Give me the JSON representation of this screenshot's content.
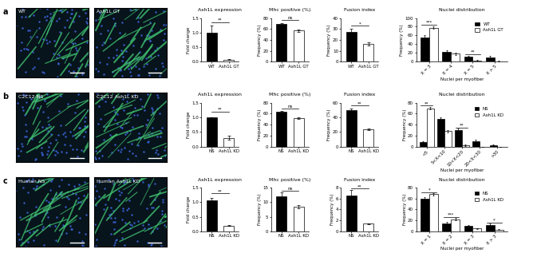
{
  "panel_labels": [
    "a",
    "b",
    "c"
  ],
  "images": [
    [
      "WT",
      "Ash1L GT"
    ],
    [
      "C2C12 NS",
      "C2C12 Ash1L KD"
    ],
    [
      "Human NS",
      "Human Ash1L KD"
    ]
  ],
  "chart_data": [
    {
      "type": "bar",
      "title": "Ash1L expression",
      "y_label": "Fold change",
      "categories": [
        "WT",
        "Ash1L GT"
      ],
      "values": [
        1.0,
        0.07
      ],
      "errors": [
        0.25,
        0.02
      ],
      "colors": [
        "#000000",
        "#ffffff"
      ],
      "ylim": [
        0,
        1.5
      ],
      "yticks": [
        {
          "value": 0,
          "label": "0.0"
        },
        0.5,
        1.0,
        1.5
      ],
      "significance": [
        {
          "label": "**",
          "y": 1.35
        }
      ]
    },
    {
      "type": "bar",
      "title": "Mhc positive (%)",
      "y_label": "Frequency (%)",
      "categories": [
        "WT",
        "Ash1L GT"
      ],
      "values": [
        69,
        57
      ],
      "errors": [
        2,
        2
      ],
      "colors": [
        "#000000",
        "#ffffff"
      ],
      "ylim": [
        0,
        80
      ],
      "yticks": [
        0,
        20,
        40,
        60,
        80
      ],
      "significance": [
        {
          "label": "ns",
          "y": 76
        }
      ]
    },
    {
      "type": "bar",
      "title": "Fusion index",
      "y_label": "Frequency (%)",
      "categories": [
        "WT",
        "Ash1L GT"
      ],
      "values": [
        27,
        16
      ],
      "errors": [
        3,
        1.5
      ],
      "colors": [
        "#000000",
        "#ffffff"
      ],
      "ylim": [
        0,
        40
      ],
      "yticks": [
        0,
        10,
        20,
        30,
        40
      ],
      "significance": [
        {
          "label": "*",
          "y": 33
        }
      ]
    },
    {
      "type": "bar",
      "title": "Nuclei distribution",
      "y_label": "Frequency (%)",
      "x_label": "Nuclei per myofiber",
      "categories": [
        "X = 3",
        "X = 4",
        "X = 5",
        "X > 5"
      ],
      "series": [
        {
          "name": "WT",
          "color": "#000000",
          "values": [
            55,
            23,
            12,
            10
          ],
          "errors": [
            5,
            3,
            2,
            3
          ]
        },
        {
          "name": "Ash1L GT",
          "color": "#ffffff",
          "values": [
            78,
            18,
            3,
            1
          ],
          "errors": [
            3,
            2,
            1,
            0.5
          ]
        }
      ],
      "ylim": [
        0,
        100
      ],
      "yticks": [
        0,
        20,
        40,
        60,
        80,
        100
      ],
      "legend": "upper right",
      "significance": [
        {
          "category": "X = 3",
          "label": "***",
          "y": 85
        },
        {
          "category": "X = 5",
          "label": "**",
          "y": 17
        }
      ]
    },
    {
      "type": "bar",
      "title": "Ash1L expression",
      "y_label": "Fold change",
      "categories": [
        "NS",
        "Ash1L KD"
      ],
      "values": [
        1.0,
        0.3
      ],
      "errors": [
        0.01,
        0.07
      ],
      "colors": [
        "#000000",
        "#ffffff"
      ],
      "ylim": [
        0,
        1.5
      ],
      "yticks": [
        {
          "value": 0,
          "label": "0.0"
        },
        0.5,
        1.0,
        1.5
      ],
      "significance": [
        {
          "label": "**",
          "y": 1.2
        }
      ]
    },
    {
      "type": "bar",
      "title": "Mhc positive (%)",
      "y_label": "Frequency (%)",
      "categories": [
        "NS",
        "Ash1L KD"
      ],
      "values": [
        63,
        52
      ],
      "errors": [
        2,
        2
      ],
      "colors": [
        "#000000",
        "#ffffff"
      ],
      "ylim": [
        0,
        80
      ],
      "yticks": [
        0,
        20,
        40,
        60,
        80
      ],
      "significance": [
        {
          "label": "ns",
          "y": 70
        }
      ]
    },
    {
      "type": "bar",
      "title": "Fusion index",
      "y_label": "Frequency (%)",
      "categories": [
        "NS",
        "Ash1L KD"
      ],
      "values": [
        50,
        24
      ],
      "errors": [
        2,
        1
      ],
      "colors": [
        "#000000",
        "#ffffff"
      ],
      "ylim": [
        0,
        60
      ],
      "yticks": [
        0,
        20,
        40,
        60
      ],
      "significance": [
        {
          "label": "**",
          "y": 56
        }
      ]
    },
    {
      "type": "bar",
      "title": "Nuclei distribution",
      "y_label": "Frequency (%)",
      "x_label": "Nuclei per myofiber",
      "categories": [
        "<5",
        "5<X<10",
        "10<X<20",
        "20<X<30",
        ">30"
      ],
      "series": [
        {
          "name": "NS",
          "color": "#000000",
          "values": [
            8,
            50,
            30,
            10,
            2
          ],
          "errors": [
            2,
            4,
            3,
            2,
            1
          ]
        },
        {
          "name": "Ash1L KD",
          "color": "#ffffff",
          "values": [
            70,
            28,
            2,
            0,
            0
          ],
          "errors": [
            2,
            2,
            1,
            0,
            0
          ]
        }
      ],
      "ylim": [
        0,
        80
      ],
      "yticks": [
        0,
        20,
        40,
        60,
        80
      ],
      "legend": "upper right",
      "significance": [
        {
          "category": "<5",
          "label": "**",
          "y": 75
        },
        {
          "category": "10<X<20",
          "label": "**",
          "y": 35
        }
      ]
    },
    {
      "type": "bar",
      "title": "Ash1L expression",
      "y_label": "Fold change",
      "categories": [
        "NS",
        "Ash1L KD"
      ],
      "values": [
        1.07,
        0.2
      ],
      "errors": [
        0.08,
        0.02
      ],
      "colors": [
        "#000000",
        "#ffffff"
      ],
      "ylim": [
        0,
        1.5
      ],
      "yticks": [
        {
          "value": 0,
          "label": "0.0"
        },
        0.5,
        1.0,
        1.5
      ],
      "significance": [
        {
          "label": "**",
          "y": 1.3
        }
      ]
    },
    {
      "type": "bar",
      "title": "Mhc positive (%)",
      "y_label": "Frequency (%)",
      "categories": [
        "NS",
        "Ash1L KD"
      ],
      "values": [
        12,
        8.5
      ],
      "errors": [
        1.5,
        0.5
      ],
      "colors": [
        "#000000",
        "#ffffff"
      ],
      "ylim": [
        0,
        15
      ],
      "yticks": [
        0,
        5,
        10,
        15
      ],
      "significance": [
        {
          "label": "ns",
          "y": 14
        }
      ]
    },
    {
      "type": "bar",
      "title": "Fusion index",
      "y_label": "Frequency (%)",
      "categories": [
        "NS",
        "Ash1L KD"
      ],
      "values": [
        6.5,
        1.4
      ],
      "errors": [
        1,
        0.1
      ],
      "colors": [
        "#000000",
        "#ffffff"
      ],
      "ylim": [
        0,
        8
      ],
      "yticks": [
        0,
        2,
        4,
        6,
        8
      ],
      "significance": [
        {
          "label": "**",
          "y": 7.8
        }
      ]
    },
    {
      "type": "bar",
      "title": "Nuclei distribution",
      "y_label": "Frequency (%)",
      "x_label": "Nuclei per myofiber",
      "categories": [
        "X = 1",
        "X = 2",
        "X = 3",
        "X > 3"
      ],
      "series": [
        {
          "name": "NS",
          "color": "#000000",
          "values": [
            60,
            15,
            10,
            12
          ],
          "errors": [
            3,
            2,
            2,
            3
          ]
        },
        {
          "name": "Ash1L KD",
          "color": "#ffffff",
          "values": [
            68,
            22,
            5,
            3
          ],
          "errors": [
            2,
            2,
            1,
            1
          ]
        }
      ],
      "ylim": [
        0,
        80
      ],
      "yticks": [
        0,
        20,
        40,
        60,
        80
      ],
      "legend": "upper right",
      "significance": [
        {
          "category": "X = 1",
          "label": "*",
          "y": 72
        },
        {
          "category": "X = 2",
          "label": "***",
          "y": 26
        },
        {
          "category": "X > 3",
          "label": "*",
          "y": 16
        }
      ]
    }
  ]
}
